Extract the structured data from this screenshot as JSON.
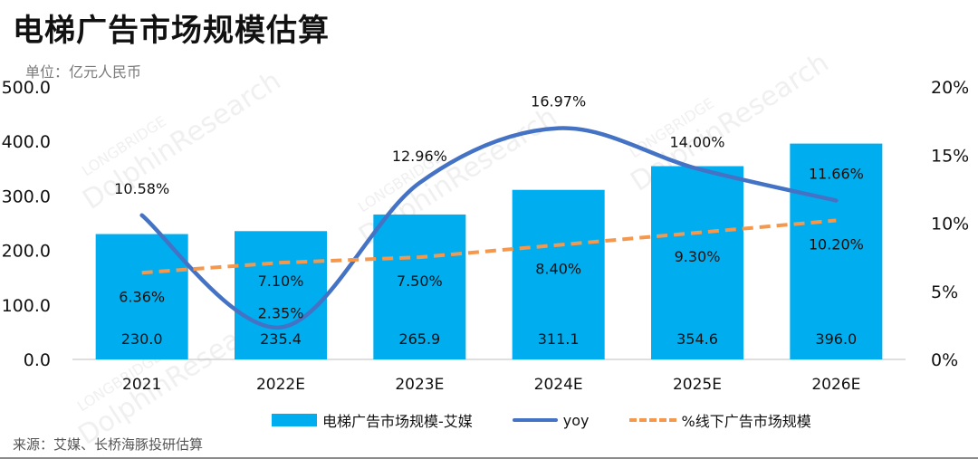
{
  "header": {
    "title": "电梯广告市场规模估算",
    "unit": "单位：亿元人民币"
  },
  "footer": {
    "source": "来源：艾媒、长桥海豚投研估算"
  },
  "watermark": {
    "brand": "LONGBRIDGE",
    "name": "DolphinResearch"
  },
  "legend": {
    "bars": "电梯广告市场规模-艾媒",
    "yoy": "yoy",
    "offline": "%线下广告市场规模"
  },
  "colors": {
    "bar": "#00aeef",
    "yoy_line": "#4472c4",
    "offline_line": "#f4984e"
  },
  "chart_data": {
    "type": "bar",
    "title": "电梯广告市场规模估算",
    "categories": [
      "2021",
      "2022E",
      "2023E",
      "2024E",
      "2025E",
      "2026E"
    ],
    "y_left": {
      "lim": [
        0,
        500
      ],
      "ticks": [
        "0.0",
        "100.0",
        "200.0",
        "300.0",
        "400.0",
        "500.0"
      ]
    },
    "y_right": {
      "lim": [
        0,
        20
      ],
      "ticks": [
        "0%",
        "5%",
        "10%",
        "15%",
        "20%"
      ]
    },
    "series": [
      {
        "name": "电梯广告市场规模-艾媒",
        "kind": "bar",
        "axis": "left",
        "values": [
          230.0,
          235.4,
          265.9,
          311.1,
          354.6,
          396.0
        ],
        "labels": [
          "230.0",
          "235.4",
          "265.9",
          "311.1",
          "354.6",
          "396.0"
        ]
      },
      {
        "name": "yoy",
        "kind": "line-smooth",
        "axis": "right",
        "values": [
          10.58,
          2.35,
          12.96,
          16.97,
          14.0,
          11.66
        ],
        "labels": [
          "10.58%",
          "2.35%",
          "12.96%",
          "16.97%",
          "14.00%",
          "11.66%"
        ]
      },
      {
        "name": "%线下广告市场规模",
        "kind": "line-dashed",
        "axis": "right",
        "values": [
          6.36,
          7.1,
          7.5,
          8.4,
          9.3,
          10.2
        ],
        "labels": [
          "6.36%",
          "7.10%",
          "7.50%",
          "8.40%",
          "9.30%",
          "10.20%"
        ]
      }
    ],
    "grid": false,
    "legend_position": "bottom"
  }
}
